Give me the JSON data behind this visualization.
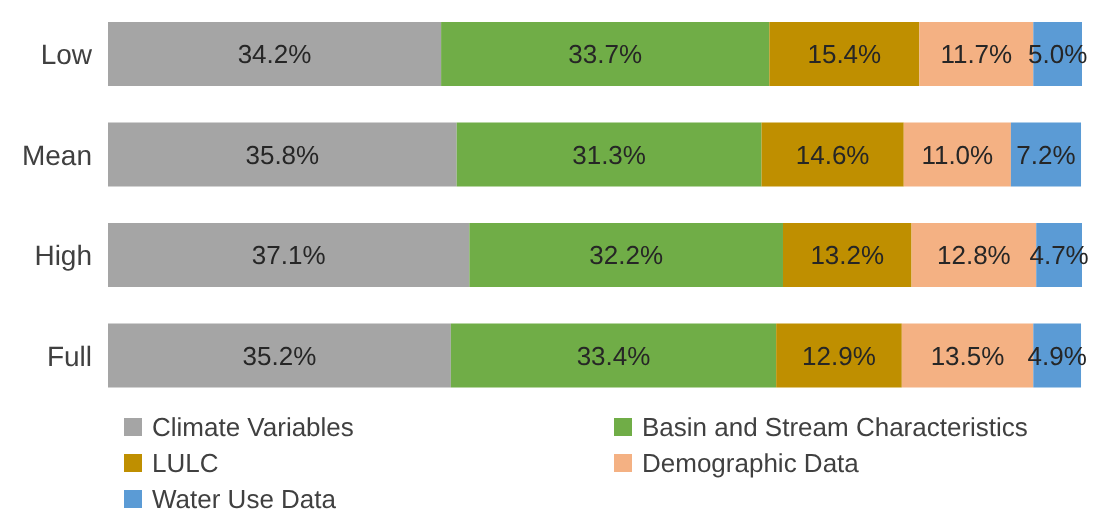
{
  "chart_data": {
    "type": "bar",
    "orientation": "horizontal",
    "stacked": true,
    "categories": [
      "Low",
      "Mean",
      "High",
      "Full"
    ],
    "series": [
      {
        "name": "Climate Variables",
        "color": "#a5a5a5",
        "values": [
          34.2,
          35.8,
          37.1,
          35.2
        ],
        "value_labels": [
          "34.2%",
          "35.8%",
          "37.1%",
          "35.2%"
        ]
      },
      {
        "name": "Basin and Stream Characteristics",
        "color": "#70ad47",
        "values": [
          33.7,
          31.3,
          32.2,
          33.4
        ],
        "value_labels": [
          "33.7%",
          "31.3%",
          "32.2%",
          "33.4%"
        ]
      },
      {
        "name": "LULC",
        "color": "#bf8f00",
        "values": [
          15.4,
          14.6,
          13.2,
          12.9
        ],
        "value_labels": [
          "15.4%",
          "14.6%",
          "13.2%",
          "12.9%"
        ]
      },
      {
        "name": "Demographic Data",
        "color": "#f4b183",
        "values": [
          11.7,
          11.0,
          12.8,
          13.5
        ],
        "value_labels": [
          "11.7%",
          "11.0%",
          "12.8%",
          "13.5%"
        ]
      },
      {
        "name": "Water Use Data",
        "color": "#5b9bd5",
        "values": [
          5.0,
          7.2,
          4.7,
          4.9
        ],
        "value_labels": [
          "5.0%",
          "7.2%",
          "4.7%",
          "4.9%"
        ]
      }
    ],
    "tick_labels": "y",
    "legend": "bottom"
  }
}
